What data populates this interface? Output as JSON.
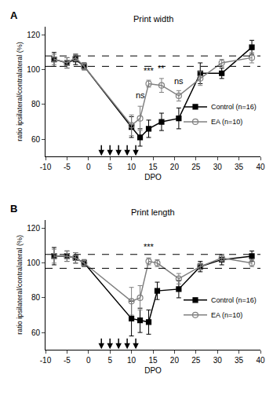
{
  "chart_data": [
    {
      "type": "line",
      "panel": "A",
      "title": "Print width",
      "x_label": "DPO",
      "y_label": "ratio ipsilateral/contralateral (%)",
      "x": [
        -8,
        -5,
        -3,
        -1,
        10,
        12,
        14,
        17,
        21,
        26,
        31,
        38
      ],
      "series": [
        {
          "name": "Control (n=16)",
          "color": "#000000",
          "marker": "square",
          "line_style": "solid",
          "values": [
            106,
            104,
            106,
            102,
            67,
            61,
            66,
            70,
            72,
            98,
            98,
            113
          ],
          "errors": [
            4,
            3,
            3,
            2,
            6,
            5,
            5,
            5,
            6,
            6,
            3,
            4
          ]
        },
        {
          "name": "EA (n=10)",
          "color": "#808080",
          "marker": "circle-open",
          "line_style": "solid",
          "values": [
            106,
            104,
            107,
            102,
            68,
            72,
            92,
            91,
            85,
            95,
            104,
            107
          ],
          "errors": [
            3,
            3,
            2,
            2,
            6,
            7,
            2,
            4,
            3,
            4,
            2,
            3
          ]
        }
      ],
      "annotations": [
        {
          "x": 12,
          "y": 82,
          "text": "ns"
        },
        {
          "x": 14,
          "y": 96,
          "text": "***"
        },
        {
          "x": 17,
          "y": 97,
          "text": "**"
        },
        {
          "x": 21,
          "y": 90,
          "text": "ns"
        }
      ],
      "reference_lines": [
        102,
        108
      ],
      "arrows": [
        3,
        5,
        7,
        9,
        11
      ],
      "xlim": [
        -10,
        40
      ],
      "xticks": [
        -10,
        -5,
        0,
        5,
        10,
        15,
        20,
        25,
        30,
        35,
        40
      ],
      "ylim": [
        50,
        125
      ],
      "yticks": [
        60,
        80,
        100,
        120
      ],
      "grid": false,
      "legend": "right"
    },
    {
      "type": "line",
      "panel": "B",
      "title": "Print length",
      "x_label": "DPO",
      "y_label": "ratio ipsilateral/contralateral (%)",
      "x": [
        -8,
        -5,
        -3,
        -1,
        10,
        12,
        14,
        16,
        21,
        26,
        31,
        38
      ],
      "series": [
        {
          "name": "Control (n=16)",
          "color": "#000000",
          "marker": "square",
          "line_style": "solid",
          "values": [
            104,
            104,
            103,
            100,
            68,
            67,
            66,
            84,
            85,
            98,
            102,
            104
          ],
          "errors": [
            5,
            3,
            3,
            2,
            10,
            7,
            7,
            5,
            5,
            3,
            3,
            3
          ]
        },
        {
          "name": "EA (n=10)",
          "color": "#808080",
          "marker": "circle-open",
          "line_style": "solid",
          "values": [
            104,
            104,
            103,
            100,
            78,
            80,
            101,
            100,
            91,
            98,
            103,
            100
          ],
          "errors": [
            4,
            3,
            3,
            2,
            8,
            7,
            2,
            2,
            3,
            2,
            2,
            2
          ]
        }
      ],
      "annotations": [
        {
          "x": 14,
          "y": 106,
          "text": "***"
        }
      ],
      "reference_lines": [
        97,
        105
      ],
      "arrows": [
        3,
        5,
        7,
        9,
        11
      ],
      "xlim": [
        -10,
        40
      ],
      "xticks": [
        -10,
        -5,
        0,
        5,
        10,
        15,
        20,
        25,
        30,
        35,
        40
      ],
      "ylim": [
        50,
        125
      ],
      "yticks": [
        60,
        80,
        100,
        120
      ],
      "grid": false,
      "legend": "right"
    }
  ]
}
